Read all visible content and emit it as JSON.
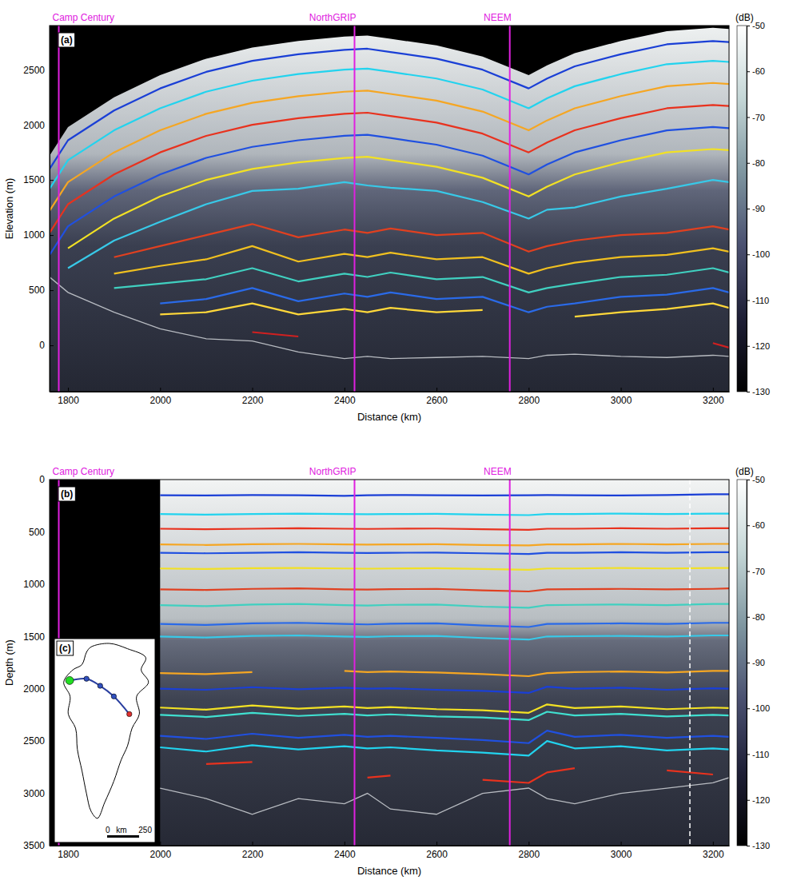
{
  "chart_data": [
    {
      "type": "line",
      "panel_label": "(a)",
      "xlabel": "Distance (km)",
      "ylabel": "Elevation (m)",
      "xlim": [
        1760,
        3235
      ],
      "xticks": [
        1800,
        2000,
        2200,
        2400,
        2600,
        2800,
        3000,
        3200
      ],
      "ylim": [
        -420,
        2900
      ],
      "yticks": [
        0,
        500,
        1000,
        1500,
        2000,
        2500
      ],
      "sites": [
        {
          "name": "Camp Century",
          "x": 1780
        },
        {
          "name": "NorthGRIP",
          "x": 2422
        },
        {
          "name": "NEEM",
          "x": 2759
        }
      ],
      "colorbar": {
        "label": "(dB)",
        "range": [
          -130,
          -50
        ],
        "ticks": [
          -130,
          -120,
          -110,
          -100,
          -90,
          -80,
          -70,
          -60,
          -50
        ]
      },
      "x": [
        1760,
        1800,
        1900,
        2000,
        2100,
        2200,
        2300,
        2400,
        2450,
        2500,
        2600,
        2700,
        2800,
        2840,
        2900,
        3000,
        3100,
        3200,
        3235
      ],
      "surface": [
        1720,
        1980,
        2250,
        2450,
        2600,
        2700,
        2760,
        2800,
        2810,
        2780,
        2720,
        2620,
        2450,
        2540,
        2650,
        2760,
        2850,
        2880,
        2870
      ],
      "bed": [
        620,
        480,
        300,
        150,
        60,
        40,
        -60,
        -120,
        -100,
        -120,
        -110,
        -100,
        -120,
        -90,
        -80,
        -100,
        -110,
        -90,
        -100
      ],
      "series": [
        {
          "color": "#1a3fd6",
          "values": [
            1600,
            1860,
            2130,
            2330,
            2480,
            2580,
            2640,
            2680,
            2690,
            2660,
            2600,
            2500,
            2330,
            2420,
            2530,
            2640,
            2730,
            2760,
            2750
          ]
        },
        {
          "color": "#22d3ee",
          "values": [
            1420,
            1680,
            1950,
            2150,
            2300,
            2400,
            2460,
            2500,
            2510,
            2480,
            2420,
            2320,
            2150,
            2240,
            2350,
            2460,
            2550,
            2580,
            2570
          ]
        },
        {
          "color": "#f5a623",
          "values": [
            1220,
            1480,
            1750,
            1950,
            2100,
            2200,
            2260,
            2300,
            2310,
            2280,
            2220,
            2120,
            1950,
            2040,
            2150,
            2260,
            2350,
            2380,
            2370
          ]
        },
        {
          "color": "#e8321e",
          "values": [
            1020,
            1280,
            1550,
            1750,
            1900,
            2000,
            2060,
            2100,
            2110,
            2080,
            2020,
            1920,
            1750,
            1840,
            1950,
            2060,
            2150,
            2180,
            2170
          ]
        },
        {
          "color": "#2050e0",
          "values": [
            820,
            1080,
            1350,
            1550,
            1700,
            1800,
            1860,
            1900,
            1910,
            1880,
            1820,
            1720,
            1550,
            1640,
            1750,
            1860,
            1950,
            1980,
            1970
          ]
        },
        {
          "color": "#f2e124",
          "values": [
            null,
            880,
            1150,
            1350,
            1500,
            1600,
            1660,
            1700,
            1710,
            1680,
            1620,
            1520,
            1350,
            1440,
            1550,
            1660,
            1750,
            1780,
            1770
          ]
        },
        {
          "color": "#38c9e8",
          "values": [
            null,
            700,
            950,
            1120,
            1280,
            1400,
            1420,
            1480,
            1450,
            1430,
            1400,
            1300,
            1150,
            1230,
            1250,
            1350,
            1420,
            1500,
            1480
          ]
        },
        {
          "color": "#e04020",
          "values": [
            null,
            null,
            800,
            900,
            1000,
            1100,
            980,
            1050,
            1020,
            1060,
            1000,
            1020,
            850,
            900,
            950,
            1000,
            1020,
            1080,
            1050
          ]
        },
        {
          "color": "#f0c020",
          "values": [
            null,
            null,
            650,
            720,
            780,
            900,
            760,
            830,
            800,
            840,
            780,
            800,
            650,
            700,
            750,
            800,
            820,
            880,
            850
          ]
        },
        {
          "color": "#40d0c0",
          "values": [
            null,
            null,
            520,
            560,
            600,
            700,
            580,
            650,
            620,
            660,
            600,
            620,
            480,
            520,
            560,
            620,
            640,
            700,
            660
          ]
        },
        {
          "color": "#2a6ae8",
          "values": [
            null,
            null,
            null,
            380,
            420,
            520,
            400,
            470,
            440,
            480,
            420,
            440,
            300,
            350,
            380,
            440,
            460,
            520,
            480
          ]
        },
        {
          "color": "#ffd83a",
          "values": [
            null,
            null,
            null,
            280,
            300,
            380,
            280,
            330,
            300,
            340,
            300,
            320,
            null,
            null,
            260,
            300,
            330,
            380,
            340
          ]
        },
        {
          "color": "#d02020",
          "values": [
            null,
            null,
            null,
            null,
            null,
            120,
            80,
            null,
            null,
            null,
            null,
            null,
            null,
            null,
            null,
            null,
            null,
            20,
            -20
          ]
        }
      ]
    },
    {
      "type": "line",
      "panel_label": "(b)",
      "xlabel": "Distance (km)",
      "ylabel": "Depth (m)",
      "xlim": [
        1760,
        3235
      ],
      "xticks": [
        1800,
        2000,
        2200,
        2400,
        2600,
        2800,
        3000,
        3200
      ],
      "ylim": [
        3500,
        0
      ],
      "yticks": [
        0,
        500,
        1000,
        1500,
        2000,
        2500,
        3000,
        3500
      ],
      "sites": [
        {
          "name": "Camp Century",
          "x": 1780
        },
        {
          "name": "NorthGRIP",
          "x": 2422
        },
        {
          "name": "NEEM",
          "x": 2759
        }
      ],
      "dashed_x": 3150,
      "colorbar": {
        "label": "(dB)",
        "range": [
          -130,
          -50
        ],
        "ticks": [
          -130,
          -120,
          -110,
          -100,
          -90,
          -80,
          -70,
          -60,
          -50
        ]
      },
      "inset": {
        "label": "(c)",
        "scale": {
          "ticks": [
            0,
            250
          ],
          "unit": "km"
        }
      },
      "x": [
        1760,
        1800,
        1900,
        2000,
        2100,
        2200,
        2300,
        2400,
        2450,
        2500,
        2600,
        2700,
        2800,
        2840,
        2900,
        3000,
        3100,
        3200,
        3235
      ],
      "bed": [
        null,
        null,
        null,
        2950,
        3050,
        3200,
        3050,
        3100,
        3000,
        3150,
        3200,
        3000,
        2950,
        3050,
        3100,
        3000,
        2950,
        2900,
        2850
      ],
      "series": [
        {
          "color": "#1a3fd6",
          "values": [
            null,
            null,
            null,
            150,
            152,
            148,
            150,
            155,
            150,
            148,
            150,
            152,
            150,
            148,
            150,
            152,
            148,
            140,
            140
          ]
        },
        {
          "color": "#22d3ee",
          "values": [
            null,
            null,
            null,
            330,
            335,
            330,
            325,
            330,
            332,
            330,
            328,
            335,
            340,
            330,
            330,
            325,
            330,
            325,
            325
          ]
        },
        {
          "color": "#e8321e",
          "values": [
            null,
            null,
            null,
            470,
            475,
            470,
            465,
            470,
            472,
            470,
            468,
            475,
            480,
            470,
            470,
            465,
            470,
            465,
            465
          ]
        },
        {
          "color": "#f5a623",
          "values": [
            null,
            null,
            null,
            620,
            625,
            618,
            615,
            620,
            622,
            620,
            618,
            625,
            630,
            620,
            620,
            615,
            620,
            615,
            615
          ]
        },
        {
          "color": "#2050e0",
          "values": [
            null,
            null,
            null,
            700,
            705,
            700,
            695,
            700,
            702,
            700,
            698,
            705,
            712,
            700,
            700,
            695,
            700,
            695,
            695
          ]
        },
        {
          "color": "#f2e124",
          "values": [
            null,
            null,
            null,
            850,
            855,
            848,
            845,
            850,
            852,
            850,
            848,
            855,
            862,
            850,
            850,
            845,
            850,
            845,
            845
          ]
        },
        {
          "color": "#e04020",
          "values": [
            null,
            null,
            null,
            1050,
            1055,
            1045,
            1040,
            1050,
            1052,
            1048,
            1045,
            1060,
            1070,
            1050,
            1048,
            1045,
            1050,
            1045,
            1040
          ]
        },
        {
          "color": "#40d0c0",
          "values": [
            null,
            null,
            null,
            1200,
            1210,
            1195,
            1190,
            1200,
            1205,
            1198,
            1195,
            1215,
            1225,
            1200,
            1198,
            1195,
            1200,
            1190,
            1190
          ]
        },
        {
          "color": "#2a6ae8",
          "values": [
            null,
            null,
            null,
            1380,
            1390,
            1375,
            1370,
            1380,
            1385,
            1378,
            1375,
            1395,
            1410,
            1380,
            1378,
            1375,
            1380,
            1370,
            1370
          ]
        },
        {
          "color": "#38c9e8",
          "values": [
            null,
            null,
            null,
            1500,
            1510,
            1495,
            1490,
            1500,
            1505,
            1498,
            1495,
            1515,
            1530,
            1500,
            1498,
            1495,
            1500,
            1490,
            1490
          ]
        },
        {
          "color": "#f5a623",
          "values": [
            null,
            null,
            null,
            1850,
            1860,
            1840,
            null,
            1830,
            1840,
            1835,
            1845,
            1860,
            1880,
            1850,
            1840,
            1835,
            1845,
            1830,
            1830
          ]
        },
        {
          "color": "#1a3fd6",
          "values": [
            null,
            null,
            null,
            2000,
            2010,
            1985,
            2005,
            1990,
            2000,
            1995,
            2010,
            2020,
            2040,
            1980,
            2000,
            1990,
            2010,
            1995,
            2000
          ]
        },
        {
          "color": "#f2e124",
          "values": [
            null,
            null,
            null,
            2180,
            2200,
            2160,
            2190,
            2170,
            2185,
            2175,
            2195,
            2205,
            2230,
            2150,
            2185,
            2170,
            2195,
            2180,
            2185
          ]
        },
        {
          "color": "#40e0d0",
          "values": [
            null,
            null,
            null,
            2250,
            2270,
            2230,
            2260,
            2240,
            2255,
            2245,
            2265,
            2275,
            2300,
            2220,
            2255,
            2240,
            2265,
            2250,
            2255
          ]
        },
        {
          "color": "#2050e0",
          "values": [
            null,
            null,
            null,
            2450,
            2480,
            2430,
            2470,
            2440,
            2460,
            2450,
            2470,
            2490,
            2520,
            2400,
            2460,
            2440,
            2470,
            2450,
            2460
          ]
        },
        {
          "color": "#22d3ee",
          "values": [
            null,
            null,
            null,
            2560,
            2600,
            2540,
            2580,
            2550,
            2570,
            2560,
            2590,
            2610,
            2640,
            2500,
            2570,
            2550,
            2590,
            2570,
            2580
          ]
        },
        {
          "color": "#e8321e",
          "values": [
            null,
            null,
            null,
            null,
            2720,
            2700,
            null,
            null,
            2850,
            2830,
            null,
            2870,
            2900,
            2800,
            2760,
            null,
            2780,
            2820,
            null
          ]
        }
      ]
    }
  ]
}
